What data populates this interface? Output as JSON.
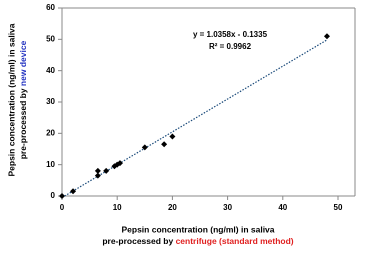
{
  "chart_data": {
    "type": "scatter",
    "x": [
      0,
      2,
      6.5,
      6.5,
      8,
      9.5,
      10,
      10.5,
      15,
      18.5,
      20,
      48
    ],
    "series": [
      {
        "values": [
          0,
          1.5,
          6.5,
          8,
          8,
          9.5,
          10,
          10.5,
          15.5,
          16.5,
          19,
          51
        ],
        "color": "#000000"
      }
    ],
    "xlim": [
      0,
      50
    ],
    "xticks": [
      0,
      10,
      20,
      30,
      40,
      50
    ],
    "ylim": [
      0,
      60
    ],
    "yticks": [
      0,
      10,
      20,
      30,
      40,
      50,
      60
    ],
    "trendline": true,
    "annotation": [
      "y = 1.0358x - 0.1335",
      "R² = 0.9962"
    ],
    "x_label": {
      "line1": "Pepsin concentration (ng/ml) in saliva",
      "line2": "pre-processed by ",
      "highlight": "centrifuge (standard method)",
      "highlight_color": "#e02020"
    },
    "y_label": {
      "line1": "Pepsin concentration (ng/ml) in saliva",
      "line2": "pre-processed by ",
      "highlight": "new device",
      "highlight_color": "#2030c0"
    }
  }
}
